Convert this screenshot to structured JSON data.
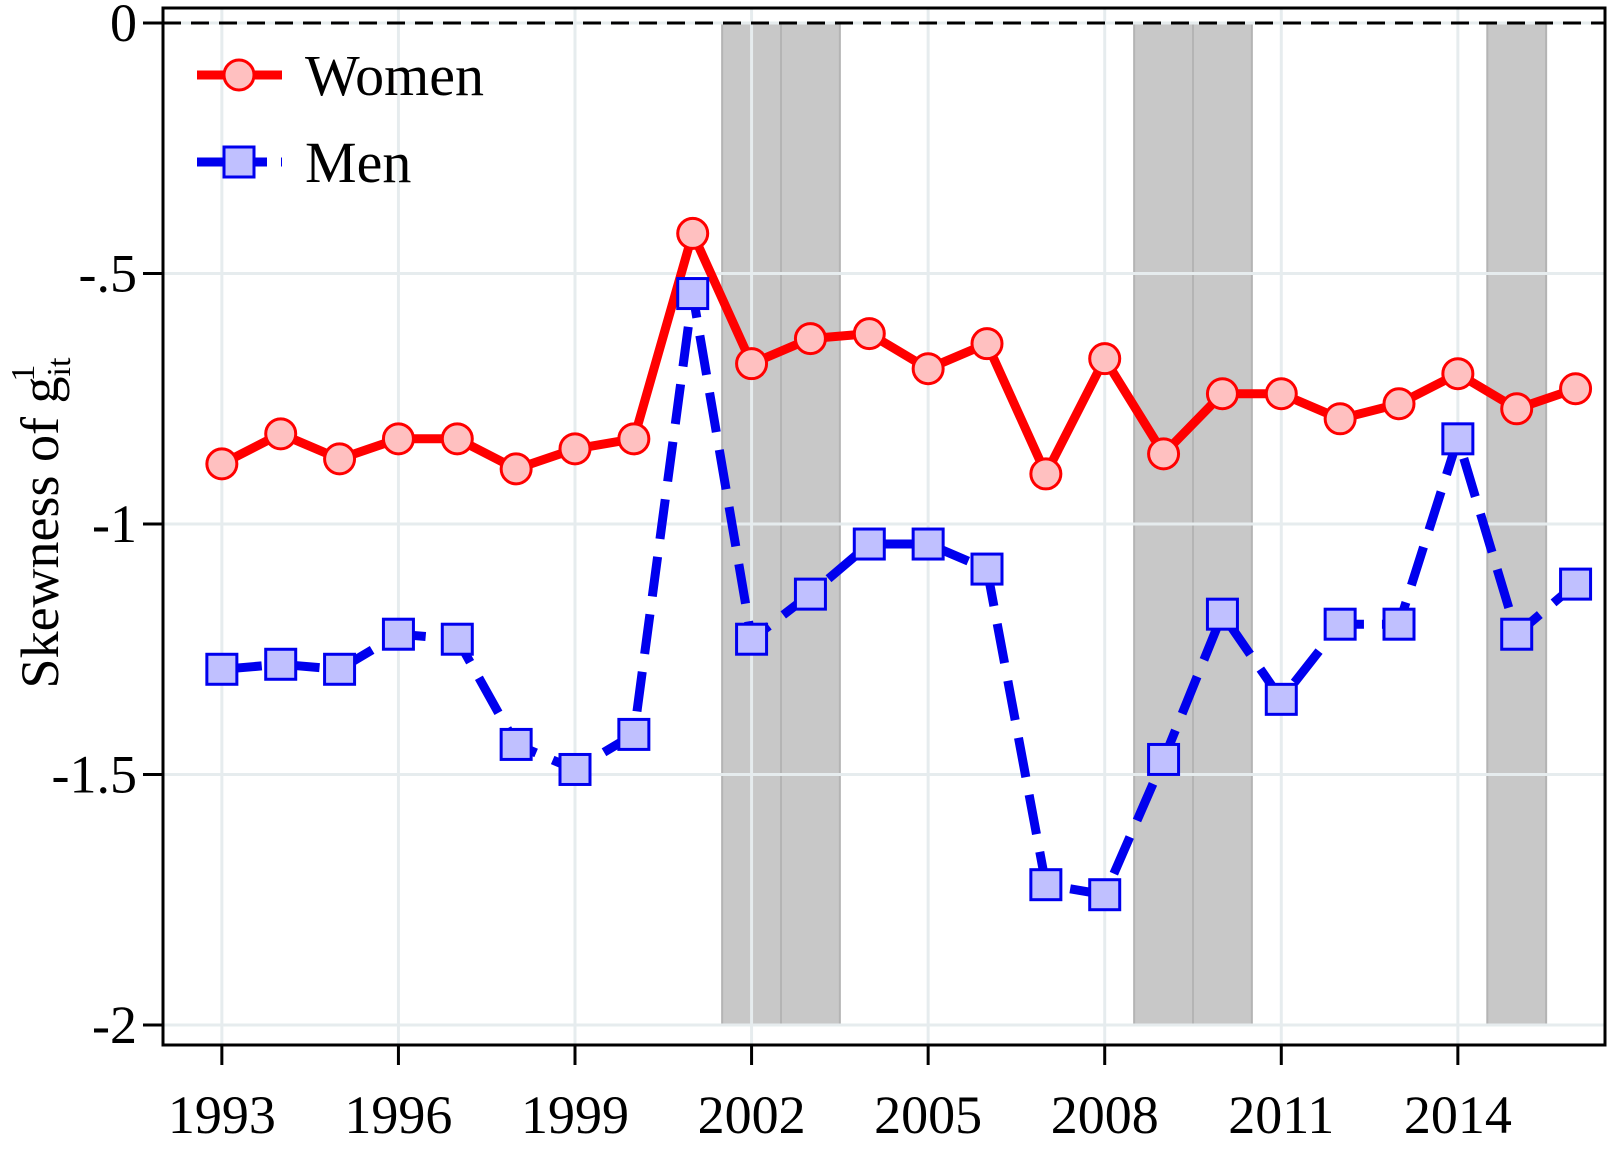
{
  "chart_data": {
    "type": "line",
    "title": "",
    "xlabel": "",
    "ylabel": {
      "prefix": "Skewness of g",
      "superscript": "1",
      "subscript": "it"
    },
    "xlim": [
      1992,
      2016.5
    ],
    "ylim": [
      -2.04,
      0.03
    ],
    "x_ticks": [
      1993,
      1996,
      1999,
      2002,
      2005,
      2008,
      2011,
      2014
    ],
    "x_tick_labels": [
      "1993",
      "1996",
      "1999",
      "2002",
      "2005",
      "2008",
      "2011",
      "2014"
    ],
    "y_ticks": [
      0,
      -0.5,
      -1,
      -1.5,
      -2
    ],
    "y_tick_labels": [
      "0",
      "-.5",
      "-1",
      "-1.5",
      "-2"
    ],
    "grid": true,
    "legend_position": "top-left",
    "reference_line": {
      "y": 0,
      "style": "dashed",
      "color": "#000000"
    },
    "shaded_periods": [
      {
        "from": 2001.5,
        "to": 2002.5
      },
      {
        "from": 2002.5,
        "to": 2003.5
      },
      {
        "from": 2008.5,
        "to": 2009.5
      },
      {
        "from": 2009.5,
        "to": 2010.5
      },
      {
        "from": 2014.5,
        "to": 2015.5
      }
    ],
    "x": [
      1993,
      1994,
      1995,
      1996,
      1997,
      1998,
      1999,
      2000,
      2001,
      2002,
      2003,
      2004,
      2005,
      2006,
      2007,
      2008,
      2009,
      2010,
      2011,
      2012,
      2013,
      2014,
      2015,
      2016
    ],
    "series": [
      {
        "name": "Women",
        "color": "#ff0000",
        "marker": "circle",
        "marker_fill": "#ffc0c0",
        "line_style": "solid",
        "values": [
          -0.88,
          -0.82,
          -0.87,
          -0.83,
          -0.83,
          -0.89,
          -0.85,
          -0.83,
          -0.42,
          -0.68,
          -0.63,
          -0.62,
          -0.69,
          -0.64,
          -0.9,
          -0.67,
          -0.86,
          -0.74,
          -0.74,
          -0.79,
          -0.76,
          -0.7,
          -0.77,
          -0.73
        ]
      },
      {
        "name": "Men",
        "color": "#0000ee",
        "marker": "square",
        "marker_fill": "#c0c0ff",
        "line_style": "dashed",
        "values": [
          -1.29,
          -1.28,
          -1.29,
          -1.22,
          -1.23,
          -1.44,
          -1.49,
          -1.42,
          -0.54,
          -1.23,
          -1.14,
          -1.04,
          -1.04,
          -1.09,
          -1.72,
          -1.74,
          -1.47,
          -1.18,
          -1.35,
          -1.2,
          -1.2,
          -0.83,
          -1.22,
          -1.12
        ]
      }
    ],
    "colors": {
      "shade": "#c8c8c8",
      "grid": "#e6ecee",
      "frame": "#000000"
    }
  }
}
